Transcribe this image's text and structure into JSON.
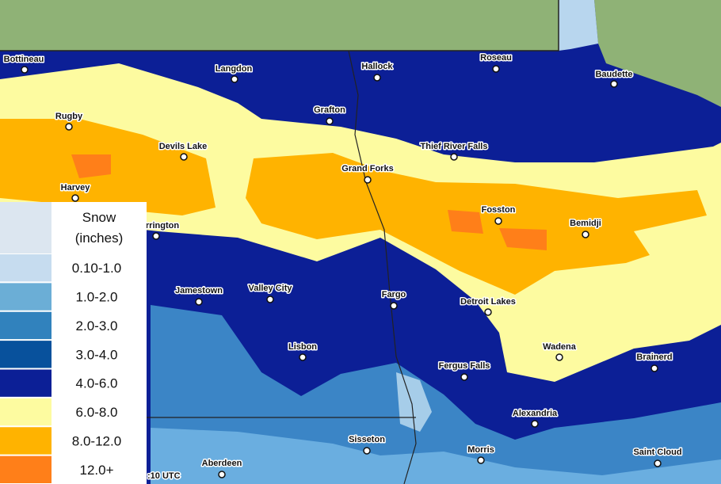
{
  "legend": {
    "title_lines": [
      "Snow",
      "(inches)"
    ],
    "items": [
      {
        "label": "0.10-1.0",
        "color": "#c6dcef"
      },
      {
        "label": "1.0-2.0",
        "color": "#6baed6"
      },
      {
        "label": "2.0-3.0",
        "color": "#3182bd"
      },
      {
        "label": "3.0-4.0",
        "color": "#08519c"
      },
      {
        "label": "4.0-6.0",
        "color": "#0c1f96"
      },
      {
        "label": "6.0-8.0",
        "color": "#fdfba0"
      },
      {
        "label": "8.0-12.0",
        "color": "#ffb300"
      },
      {
        "label": "12.0+",
        "color": "#ff7f19"
      }
    ]
  },
  "cities": [
    "Bottineau",
    "Langdon",
    "Hallock",
    "Roseau",
    "Baudette",
    "Rugby",
    "Grafton",
    "Devils Lake",
    "Thief River Falls",
    "Grand Forks",
    "Harvey",
    "Fosston",
    "Bemidji",
    "rrington",
    "Jamestown",
    "Valley City",
    "Fargo",
    "Detroit Lakes",
    "Lisbon",
    "Wadena",
    "Brainerd",
    "Fergus Falls",
    "Alexandria",
    "Sisseton",
    "Morris",
    "Aberdeen",
    "Saint Cloud"
  ],
  "timestamp": ":10 UTC"
}
